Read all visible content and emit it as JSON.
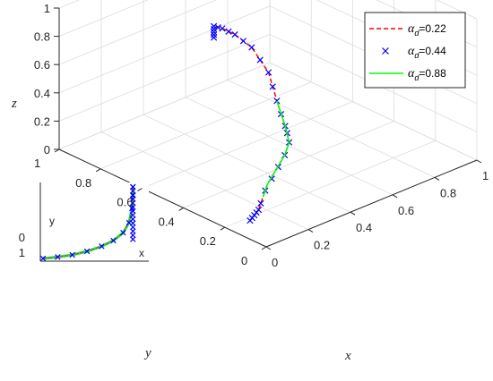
{
  "chart_data": {
    "type": "line",
    "projection": "3d",
    "title": "",
    "axes": {
      "x": {
        "label": "x",
        "ticks": [
          "0",
          "0.2",
          "0.4",
          "0.6",
          "0.8",
          "1"
        ],
        "range": [
          0,
          1
        ]
      },
      "y": {
        "label": "y",
        "ticks": [
          "0",
          "0.2",
          "0.4",
          "0.6",
          "0.8",
          "1"
        ],
        "range": [
          0,
          1
        ]
      },
      "z": {
        "label": "z",
        "ticks": [
          "0",
          "0.2",
          "0.4",
          "0.6",
          "0.8",
          "1"
        ],
        "range": [
          0,
          1
        ]
      }
    },
    "grid": true,
    "legend": {
      "position": "top-right",
      "entries": [
        {
          "symbol": "α",
          "sub": "d",
          "value": "=0.22",
          "style": "dashed",
          "color": "#ff0000"
        },
        {
          "symbol": "α",
          "sub": "d",
          "value": "=0.44",
          "style": "x-marker",
          "color": "#0000ff"
        },
        {
          "symbol": "α",
          "sub": "d",
          "value": "=0.88",
          "style": "solid",
          "color": "#00ff00"
        }
      ]
    },
    "series": [
      {
        "color": "#ff0000",
        "style": "dashed",
        "points": [
          {
            "x": 0.1,
            "y": 0.18,
            "z": 0.0
          },
          {
            "x": 0.18,
            "y": 0.22,
            "z": 0.0
          },
          {
            "x": 0.26,
            "y": 0.28,
            "z": 0.0
          },
          {
            "x": 0.34,
            "y": 0.34,
            "z": 0.0
          },
          {
            "x": 0.44,
            "y": 0.4,
            "z": 0.0
          },
          {
            "x": 0.54,
            "y": 0.46,
            "z": 0.0
          },
          {
            "x": 0.62,
            "y": 0.52,
            "z": 0.0
          },
          {
            "x": 0.66,
            "y": 0.58,
            "z": 0.05
          },
          {
            "x": 0.66,
            "y": 0.62,
            "z": 0.2
          },
          {
            "x": 0.64,
            "y": 0.64,
            "z": 0.4
          },
          {
            "x": 0.58,
            "y": 0.66,
            "z": 0.6
          },
          {
            "x": 0.5,
            "y": 0.66,
            "z": 0.74
          },
          {
            "x": 0.44,
            "y": 0.66,
            "z": 0.82
          },
          {
            "x": 0.4,
            "y": 0.66,
            "z": 0.86
          }
        ]
      },
      {
        "color": "#0000ff",
        "style": "x-marker",
        "points": [
          {
            "x": 0.1,
            "y": 0.18,
            "z": 0.0
          },
          {
            "x": 0.12,
            "y": 0.19,
            "z": 0.0
          },
          {
            "x": 0.14,
            "y": 0.2,
            "z": 0.0
          },
          {
            "x": 0.16,
            "y": 0.21,
            "z": 0.0
          },
          {
            "x": 0.18,
            "y": 0.22,
            "z": 0.0
          },
          {
            "x": 0.22,
            "y": 0.25,
            "z": 0.0
          },
          {
            "x": 0.3,
            "y": 0.31,
            "z": 0.0
          },
          {
            "x": 0.38,
            "y": 0.36,
            "z": 0.0
          },
          {
            "x": 0.46,
            "y": 0.41,
            "z": 0.0
          },
          {
            "x": 0.54,
            "y": 0.46,
            "z": 0.0
          },
          {
            "x": 0.62,
            "y": 0.52,
            "z": 0.0
          },
          {
            "x": 0.65,
            "y": 0.56,
            "z": 0.02
          },
          {
            "x": 0.66,
            "y": 0.58,
            "z": 0.05
          },
          {
            "x": 0.66,
            "y": 0.6,
            "z": 0.12
          },
          {
            "x": 0.66,
            "y": 0.62,
            "z": 0.2
          },
          {
            "x": 0.65,
            "y": 0.63,
            "z": 0.3
          },
          {
            "x": 0.64,
            "y": 0.64,
            "z": 0.4
          },
          {
            "x": 0.61,
            "y": 0.65,
            "z": 0.5
          },
          {
            "x": 0.58,
            "y": 0.66,
            "z": 0.6
          },
          {
            "x": 0.54,
            "y": 0.66,
            "z": 0.67
          },
          {
            "x": 0.5,
            "y": 0.66,
            "z": 0.74
          },
          {
            "x": 0.47,
            "y": 0.66,
            "z": 0.78
          },
          {
            "x": 0.44,
            "y": 0.66,
            "z": 0.82
          },
          {
            "x": 0.42,
            "y": 0.66,
            "z": 0.84
          },
          {
            "x": 0.4,
            "y": 0.66,
            "z": 0.86
          },
          {
            "x": 0.4,
            "y": 0.66,
            "z": 0.84
          },
          {
            "x": 0.4,
            "y": 0.66,
            "z": 0.82
          },
          {
            "x": 0.4,
            "y": 0.66,
            "z": 0.8
          },
          {
            "x": 0.4,
            "y": 0.66,
            "z": 0.78
          }
        ]
      },
      {
        "color": "#00ff00",
        "style": "solid",
        "points": [
          {
            "x": 0.26,
            "y": 0.28,
            "z": 0.0
          },
          {
            "x": 0.34,
            "y": 0.34,
            "z": 0.0
          },
          {
            "x": 0.44,
            "y": 0.4,
            "z": 0.0
          },
          {
            "x": 0.54,
            "y": 0.46,
            "z": 0.0
          },
          {
            "x": 0.62,
            "y": 0.52,
            "z": 0.0
          },
          {
            "x": 0.66,
            "y": 0.58,
            "z": 0.05
          },
          {
            "x": 0.66,
            "y": 0.62,
            "z": 0.2
          }
        ]
      }
    ],
    "inset": {
      "xlabel": "x",
      "ylabel": "y",
      "yticks": [
        "0",
        "1"
      ],
      "curve": [
        {
          "x": 0.0,
          "y": 0.0
        },
        {
          "x": 0.15,
          "y": 0.02
        },
        {
          "x": 0.3,
          "y": 0.05
        },
        {
          "x": 0.45,
          "y": 0.1
        },
        {
          "x": 0.6,
          "y": 0.17
        },
        {
          "x": 0.72,
          "y": 0.25
        },
        {
          "x": 0.82,
          "y": 0.36
        },
        {
          "x": 0.88,
          "y": 0.5
        },
        {
          "x": 0.91,
          "y": 0.7
        },
        {
          "x": 0.92,
          "y": 0.88
        },
        {
          "x": 0.92,
          "y": 1.0
        }
      ]
    }
  }
}
